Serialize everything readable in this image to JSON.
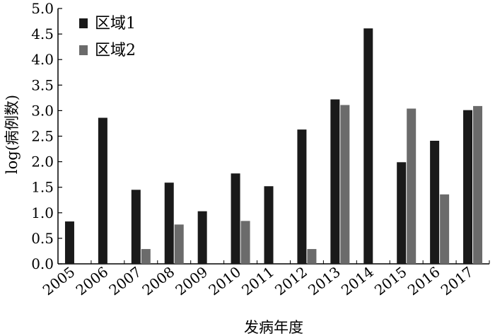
{
  "chart_data": {
    "type": "bar",
    "categories": [
      "2005",
      "2006",
      "2007",
      "2008",
      "2009",
      "2010",
      "2011",
      "2012",
      "2013",
      "2014",
      "2015",
      "2016",
      "2017"
    ],
    "series": [
      {
        "name": "区域1",
        "color": "#1a1a1a",
        "values": [
          0.83,
          2.86,
          1.45,
          1.59,
          1.03,
          1.77,
          1.52,
          2.63,
          3.22,
          4.61,
          1.99,
          2.41,
          3.01
        ]
      },
      {
        "name": "区域2",
        "color": "#6b6b6b",
        "values": [
          0,
          0,
          0.29,
          0.77,
          0,
          0.84,
          0,
          0.29,
          3.11,
          0,
          3.04,
          1.36,
          3.09
        ]
      }
    ],
    "xlabel": "发病年度",
    "ylabel": "log(病例数)",
    "ylim": [
      0,
      5.0
    ],
    "yticks": [
      "0.0",
      "0.5",
      "1.0",
      "1.5",
      "2.0",
      "2.5",
      "3.0",
      "3.5",
      "4.0",
      "4.5",
      "5.0"
    ],
    "grid": false,
    "legend_position": "top-left"
  }
}
